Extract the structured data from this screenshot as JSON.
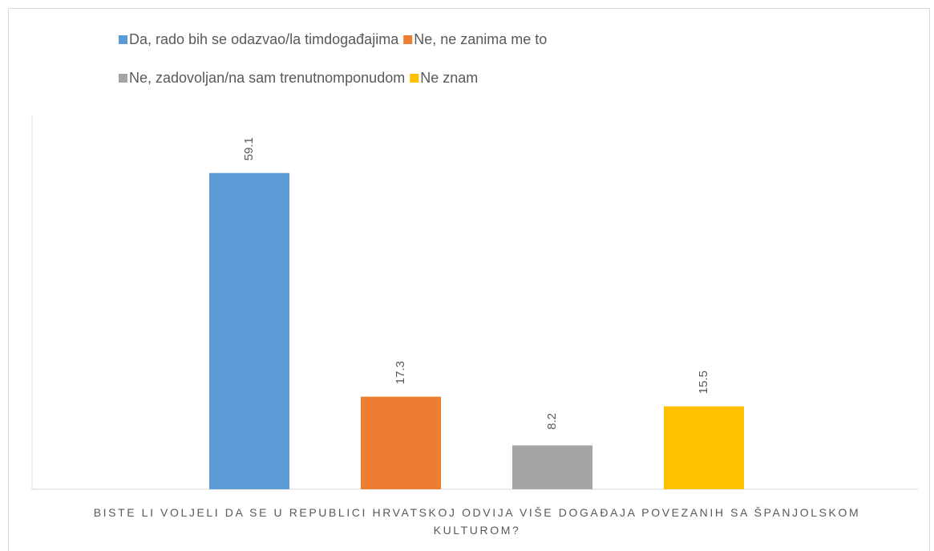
{
  "chart_data": {
    "type": "bar",
    "categories": [
      "BISTE LI VOLJELI DA SE U REPUBLICI HRVATSKOJ ODVIJA VIŠE DOGAĐAJA POVEZANIH SA ŠPANJOLSKOM KULTUROM?"
    ],
    "series": [
      {
        "name": "Da, rado bih se odazvao/la timdogađajima",
        "color": "#5b9bd5",
        "values": [
          59.1
        ]
      },
      {
        "name": "Ne, ne zanima me to",
        "color": "#ed7d31",
        "values": [
          17.3
        ]
      },
      {
        "name": "Ne, zadovoljan/na sam trenutnomponudom",
        "color": "#a5a5a5",
        "values": [
          8.2
        ]
      },
      {
        "name": "Ne znam",
        "color": "#ffc000",
        "values": [
          15.5
        ]
      }
    ],
    "ylim": [
      0,
      70
    ]
  }
}
